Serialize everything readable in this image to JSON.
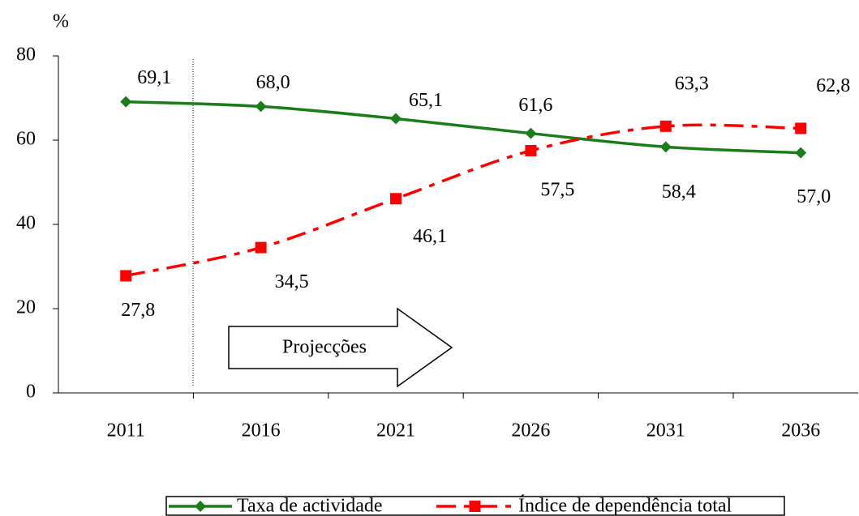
{
  "chart_data": {
    "type": "line",
    "y_label": "%",
    "annotation": "Projecções",
    "categories": [
      "2011",
      "2016",
      "2021",
      "2026",
      "2031",
      "2036"
    ],
    "series": [
      {
        "name": "Taxa de actividade",
        "color": "#1a7d1a",
        "values": [
          69.1,
          68.0,
          65.1,
          61.6,
          58.4,
          57.0
        ],
        "value_labels": [
          "69,1",
          "68,0",
          "65,1",
          "61,6",
          "58,4",
          "57,0"
        ]
      },
      {
        "name": "Índice de dependência total",
        "color": "#ff0000",
        "values": [
          27.8,
          34.5,
          46.1,
          57.5,
          63.3,
          62.8
        ],
        "value_labels": [
          "27,8",
          "34,5",
          "46,1",
          "57,5",
          "63,3",
          "62,8"
        ]
      }
    ],
    "ylim": [
      0,
      80
    ],
    "yticks": [
      0,
      20,
      40,
      60,
      80
    ],
    "legend": "bottom"
  }
}
